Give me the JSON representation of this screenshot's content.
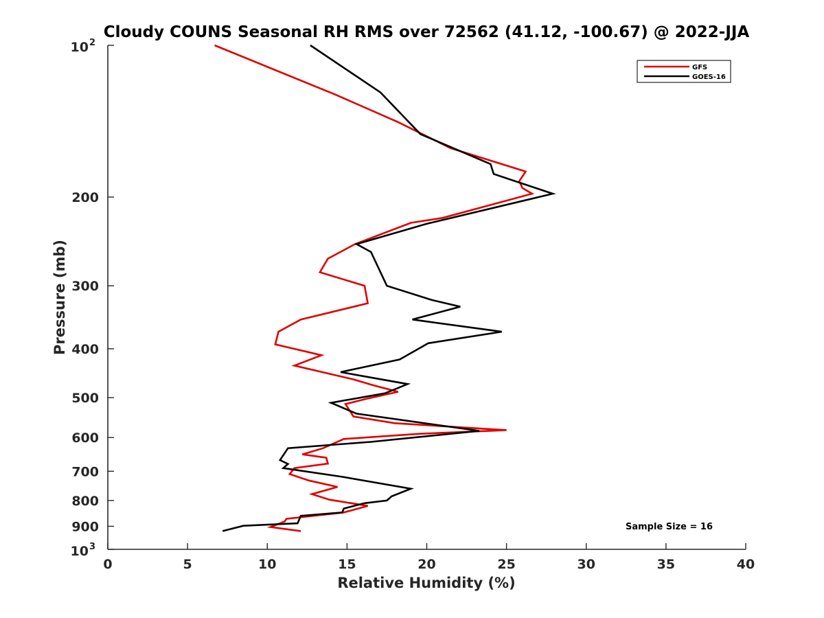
{
  "chart_data": {
    "type": "line",
    "title": "Cloudy COUNS Seasonal RH RMS over 72562 (41.12, -100.67) @ 2022-JJA",
    "xlabel": "Relative Humidity (%)",
    "ylabel": "Pressure (mb)",
    "xlim": [
      0,
      40
    ],
    "ylim": [
      100,
      1000
    ],
    "yscale": "log",
    "y_reversed": true,
    "x_ticks": [
      0,
      5,
      10,
      15,
      20,
      25,
      30,
      35,
      40
    ],
    "x_tick_labels": [
      "0",
      "5",
      "10",
      "15",
      "20",
      "25",
      "30",
      "35",
      "40"
    ],
    "y_ticks": [
      200,
      300,
      400,
      500,
      600,
      700,
      800,
      900
    ],
    "y_tick_labels": [
      "200",
      "300",
      "400",
      "500",
      "600",
      "700",
      "800",
      "900"
    ],
    "y_exp_ticks": [
      {
        "value": 100,
        "base": "10",
        "exp": "2"
      },
      {
        "value": 1000,
        "base": "10",
        "exp": "3"
      }
    ],
    "legend": {
      "location": "top-right",
      "entries": [
        "GFS",
        "GOES-16"
      ]
    },
    "annotation": "Sample Size = 16",
    "series": [
      {
        "name": "GFS",
        "color": "#e00000",
        "x": [
          6.7,
          14.2,
          18.2,
          21.5,
          26.2,
          25.8,
          26.0,
          26.6,
          21.0,
          19.0,
          15.5,
          13.8,
          13.3,
          16.1,
          16.3,
          12.1,
          10.7,
          10.5,
          13.4,
          11.7,
          15.4,
          16.6,
          18.2,
          16.3,
          14.9,
          15.4,
          18.0,
          25.0,
          19.5,
          14.8,
          13.5,
          12.2,
          13.7,
          13.8,
          11.7,
          11.4,
          12.6,
          14.4,
          12.8,
          13.9,
          16.3,
          14.8,
          11.2,
          11.1,
          10.2,
          12.1
        ],
        "y": [
          100,
          125,
          142,
          160,
          178,
          186,
          192,
          197,
          220,
          225,
          248,
          265,
          282,
          300,
          325,
          350,
          370,
          392,
          412,
          432,
          460,
          472,
          487,
          502,
          515,
          545,
          562,
          580,
          590,
          604,
          630,
          648,
          658,
          676,
          690,
          709,
          730,
          752,
          777,
          797,
          820,
          845,
          870,
          880,
          903,
          920
        ]
      },
      {
        "name": "GOES-16",
        "color": "#000000",
        "x": [
          12.7,
          17.1,
          19.6,
          24.0,
          24.2,
          27.9,
          20.0,
          15.6,
          16.5,
          17.5,
          20.3,
          22.1,
          19.1,
          24.7,
          20.1,
          18.3,
          14.6,
          18.8,
          17.4,
          14.0,
          15.6,
          23.3,
          16.5,
          11.3,
          10.8,
          11.3,
          11.0,
          14.7,
          19.0,
          17.8,
          17.5,
          16.1,
          14.8,
          14.7,
          12.1,
          11.9,
          8.5,
          7.2
        ],
        "y": [
          100,
          124,
          150,
          172,
          180,
          197,
          226,
          248,
          257,
          300,
          320,
          330,
          350,
          370,
          390,
          420,
          445,
          470,
          490,
          512,
          538,
          582,
          612,
          630,
          665,
          677,
          690,
          718,
          758,
          785,
          800,
          810,
          830,
          845,
          858,
          888,
          898,
          920
        ]
      }
    ]
  }
}
